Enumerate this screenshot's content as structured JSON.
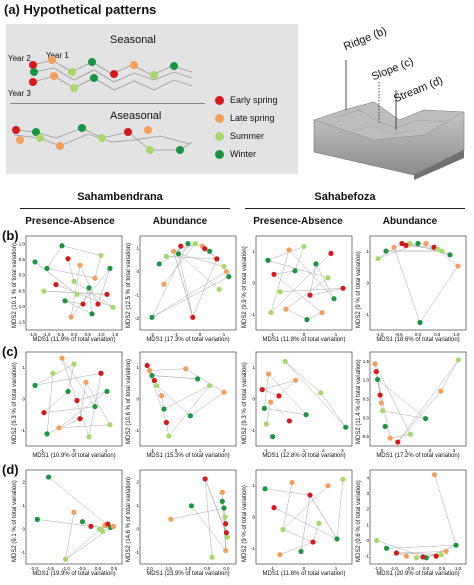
{
  "figure": {
    "panel_a_label": "(a) Hypothetical patterns",
    "panel_b_label": "(b)",
    "panel_c_label": "(c)",
    "panel_d_label": "(d)",
    "seasonal_label": "Seasonal",
    "aseasonal_label": "Aseasonal",
    "year1": "Year 1",
    "year2": "Year 2",
    "year3": "Year 3",
    "ridge": "Ridge (b)",
    "slope": "Slope (c)",
    "stream": "Stream (d)",
    "site1": "Sahambendrana",
    "site2": "Sahabefoza",
    "col_pa": "Presence-Absence",
    "col_ab": "Abundance",
    "mds2_prefix": "MDS2",
    "mds1_prefix": "MDS1"
  },
  "legend": [
    {
      "label": "Early spring",
      "color": "#d7191c"
    },
    {
      "label": "Late spring",
      "color": "#f4a05a"
    },
    {
      "label": "Summer",
      "color": "#a6d96a"
    },
    {
      "label": "Winter",
      "color": "#1a9641"
    }
  ],
  "chart_data": [
    {
      "type": "scatter",
      "panel": "b",
      "site": "Sahambendrana",
      "method": "Presence-Absence",
      "xlabel": "MDS1 (11.9% of total variation)",
      "ylabel": "MDS2 (10.1 % of total variation)",
      "xticks": [
        "-1.5",
        "-1.0",
        "-0.5",
        "0.0",
        "0.5",
        "1.0",
        "1.5"
      ],
      "yticks": [
        "-1.5",
        "-1.0",
        "-0.5",
        "0.0",
        "0.5",
        "1.0"
      ],
      "xlim": [
        -1.6,
        1.6
      ],
      "ylim": [
        -1.7,
        1.2
      ],
      "points": [
        [
          -1.3,
          0.4,
          3
        ],
        [
          -0.9,
          0.2,
          3
        ],
        [
          -0.6,
          -0.3,
          0
        ],
        [
          -0.3,
          -0.8,
          3
        ],
        [
          -0.1,
          -1.3,
          1
        ],
        [
          0.1,
          -0.6,
          2
        ],
        [
          0.3,
          -0.9,
          0
        ],
        [
          0.5,
          -0.4,
          3
        ],
        [
          0.7,
          -0.1,
          1
        ],
        [
          0.9,
          0.6,
          2
        ],
        [
          1.1,
          -0.6,
          0
        ],
        [
          1.3,
          -1.0,
          2
        ],
        [
          -0.4,
          0.9,
          3
        ],
        [
          0.2,
          0.3,
          1
        ],
        [
          0.6,
          -1.2,
          3
        ],
        [
          -1.0,
          -0.5,
          2
        ],
        [
          0.8,
          -0.9,
          0
        ],
        [
          1.2,
          0.2,
          3
        ],
        [
          0.0,
          -0.2,
          2
        ],
        [
          -0.2,
          0.5,
          0
        ]
      ]
    },
    {
      "type": "scatter",
      "panel": "b",
      "site": "Sahambendrana",
      "method": "Abundance",
      "xlabel": "MDS1 (17.3% of total variation)",
      "ylabel": "MDS2 (12.5 % of total variation)",
      "xticks": [
        "-2",
        "-1",
        "0",
        "1"
      ],
      "yticks": [
        "-2",
        "-1",
        "0",
        "1"
      ],
      "xlim": [
        -2.4,
        1.6
      ],
      "ylim": [
        -2.4,
        1.3
      ],
      "points": [
        [
          -1.6,
          0.2,
          3
        ],
        [
          -1.3,
          0.5,
          2
        ],
        [
          -1.0,
          0.7,
          1
        ],
        [
          -0.7,
          0.9,
          0
        ],
        [
          -0.4,
          1.0,
          3
        ],
        [
          -0.1,
          1.0,
          2
        ],
        [
          0.2,
          0.9,
          1
        ],
        [
          0.5,
          0.7,
          3
        ],
        [
          0.8,
          0.4,
          0
        ],
        [
          1.1,
          0.1,
          2
        ],
        [
          1.3,
          -0.3,
          3
        ],
        [
          -0.2,
          -1.9,
          0
        ],
        [
          -1.4,
          -0.6,
          1
        ],
        [
          0.3,
          0.8,
          0
        ],
        [
          -0.8,
          0.6,
          3
        ],
        [
          0.9,
          -0.8,
          2
        ],
        [
          1.2,
          -0.1,
          1
        ],
        [
          -1.9,
          -1.9,
          3
        ]
      ]
    },
    {
      "type": "scatter",
      "panel": "b",
      "site": "Sahabefoza",
      "method": "Presence-Absence",
      "xlabel": "MDS1 (11.8% of total variation)",
      "ylabel": "MDS2 (9.9 % of total variation)",
      "xticks": [
        "-1",
        "0",
        "1"
      ],
      "yticks": [
        "-1",
        "0",
        "1"
      ],
      "xlim": [
        -1.6,
        1.6
      ],
      "ylim": [
        -1.4,
        1.3
      ],
      "points": [
        [
          -1.2,
          0.6,
          3
        ],
        [
          -1.0,
          0.2,
          0
        ],
        [
          -0.8,
          -0.3,
          2
        ],
        [
          -0.5,
          0.9,
          1
        ],
        [
          -0.3,
          0.3,
          3
        ],
        [
          0.0,
          1.0,
          2
        ],
        [
          0.2,
          -0.4,
          0
        ],
        [
          0.4,
          0.5,
          3
        ],
        [
          0.6,
          -0.9,
          1
        ],
        [
          0.8,
          0.1,
          2
        ],
        [
          1.0,
          -0.5,
          3
        ],
        [
          1.3,
          -0.2,
          0
        ],
        [
          -0.6,
          -0.8,
          1
        ],
        [
          0.1,
          -1.1,
          3
        ],
        [
          -1.1,
          -0.9,
          2
        ],
        [
          0.9,
          0.8,
          0
        ]
      ]
    },
    {
      "type": "scatter",
      "panel": "b",
      "site": "Sahabefoza",
      "method": "Abundance",
      "xlabel": "MDS1 (18.6% of total variation)",
      "ylabel": "MDS2 (9 % of total variation)",
      "xticks": [
        "-1.0",
        "-0.5",
        "0.0",
        "0.5",
        "1.0"
      ],
      "yticks": [
        "-1",
        "0",
        "1"
      ],
      "xlim": [
        -1.2,
        1.2
      ],
      "ylim": [
        -1.6,
        0.9
      ],
      "points": [
        [
          -1.0,
          0.3,
          2
        ],
        [
          -0.8,
          0.5,
          3
        ],
        [
          -0.6,
          0.6,
          1
        ],
        [
          -0.4,
          0.7,
          0
        ],
        [
          -0.2,
          0.7,
          2
        ],
        [
          0.0,
          0.7,
          3
        ],
        [
          0.2,
          0.7,
          1
        ],
        [
          0.4,
          0.6,
          0
        ],
        [
          0.6,
          0.5,
          2
        ],
        [
          0.8,
          0.4,
          3
        ],
        [
          1.0,
          0.1,
          1
        ],
        [
          0.05,
          -1.4,
          3
        ],
        [
          -0.3,
          0.65,
          0
        ],
        [
          0.5,
          0.55,
          2
        ]
      ]
    },
    {
      "type": "scatter",
      "panel": "c",
      "site": "Sahambendrana",
      "method": "Presence-Absence",
      "xlabel": "MDS1 (10.9% of total variation)",
      "ylabel": "MDS2 (9.3 % of total variation)",
      "xticks": [
        "-1",
        "0",
        "1"
      ],
      "yticks": [
        "-1",
        "0",
        "1"
      ],
      "xlim": [
        -1.6,
        1.6
      ],
      "ylim": [
        -1.5,
        1.6
      ],
      "points": [
        [
          -1.3,
          0.5,
          3
        ],
        [
          -1.0,
          -0.4,
          0
        ],
        [
          -0.7,
          0.9,
          2
        ],
        [
          -0.5,
          -0.9,
          1
        ],
        [
          -0.2,
          0.3,
          3
        ],
        [
          0.0,
          1.2,
          2
        ],
        [
          0.2,
          -0.6,
          0
        ],
        [
          0.4,
          0.6,
          1
        ],
        [
          0.7,
          -0.2,
          3
        ],
        [
          0.9,
          0.9,
          0
        ],
        [
          1.2,
          -0.8,
          2
        ],
        [
          -0.9,
          -1.1,
          3
        ],
        [
          0.5,
          -1.2,
          2
        ],
        [
          -0.4,
          1.4,
          1
        ],
        [
          1.1,
          0.3,
          3
        ],
        [
          0.1,
          0.0,
          0
        ]
      ]
    },
    {
      "type": "scatter",
      "panel": "c",
      "site": "Sahambendrana",
      "method": "Abundance",
      "xlabel": "MDS1 (15.3% of total variation)",
      "ylabel": "MDS2 (10.6 % of total variation)",
      "xticks": [
        "-1",
        "0",
        "1",
        "2"
      ],
      "yticks": [
        "-1",
        "0",
        "1"
      ],
      "xlim": [
        -1.6,
        2.4
      ],
      "ylim": [
        -1.4,
        1.4
      ],
      "points": [
        [
          -1.3,
          1.0,
          0
        ],
        [
          -1.1,
          0.7,
          3
        ],
        [
          -0.9,
          0.4,
          2
        ],
        [
          -0.7,
          0.1,
          1
        ],
        [
          -0.6,
          -0.3,
          3
        ],
        [
          -0.5,
          -0.7,
          0
        ],
        [
          -0.4,
          -1.1,
          2
        ],
        [
          0.3,
          0.9,
          1
        ],
        [
          0.8,
          0.6,
          3
        ],
        [
          1.3,
          0.4,
          2
        ],
        [
          1.9,
          0.2,
          1
        ],
        [
          0.5,
          -0.5,
          3
        ],
        [
          -1.2,
          0.85,
          1
        ],
        [
          -1.0,
          0.55,
          0
        ]
      ]
    },
    {
      "type": "scatter",
      "panel": "c",
      "site": "Sahabefoza",
      "method": "Presence-Absence",
      "xlabel": "MDS1 (12.8% of total variation)",
      "ylabel": "MDS2 (9.3 % of total variation)",
      "xticks": [
        "-1",
        "0",
        "1",
        "2",
        "3"
      ],
      "yticks": [
        "-1",
        "0",
        "1"
      ],
      "xlim": [
        -1.4,
        3.2
      ],
      "ylim": [
        -1.4,
        1.6
      ],
      "points": [
        [
          -1.1,
          0.4,
          0
        ],
        [
          -1.0,
          -0.2,
          3
        ],
        [
          -0.9,
          -0.7,
          2
        ],
        [
          -0.8,
          0.9,
          1
        ],
        [
          -0.6,
          -1.1,
          3
        ],
        [
          -0.3,
          0.2,
          0
        ],
        [
          0.0,
          1.3,
          2
        ],
        [
          0.5,
          0.7,
          1
        ],
        [
          1.0,
          -0.4,
          3
        ],
        [
          1.7,
          0.3,
          2
        ],
        [
          2.9,
          -0.8,
          3
        ],
        [
          -0.7,
          0.0,
          1
        ],
        [
          0.2,
          -0.6,
          0
        ]
      ]
    },
    {
      "type": "scatter",
      "panel": "c",
      "site": "Sahabefoza",
      "method": "Abundance",
      "xlabel": "MDS1 (17.2% of total variation)",
      "ylabel": "MDS2 (11.4 % of total variation)",
      "xticks": [
        "0",
        "1",
        "2",
        "3"
      ],
      "yticks": [
        "-0.5",
        "0.0",
        "0.5",
        "1.0",
        "1.5"
      ],
      "xlim": [
        -0.6,
        3.2
      ],
      "ylim": [
        -0.8,
        1.6
      ],
      "points": [
        [
          -0.4,
          1.3,
          1
        ],
        [
          -0.3,
          0.9,
          3
        ],
        [
          -0.2,
          0.5,
          0
        ],
        [
          -0.1,
          0.1,
          2
        ],
        [
          0.0,
          -0.3,
          3
        ],
        [
          0.2,
          -0.6,
          1
        ],
        [
          0.5,
          -0.7,
          0
        ],
        [
          1.0,
          -0.5,
          2
        ],
        [
          1.6,
          -0.1,
          3
        ],
        [
          2.2,
          0.6,
          1
        ],
        [
          2.9,
          1.4,
          2
        ],
        [
          -0.35,
          1.1,
          0
        ],
        [
          -0.15,
          0.3,
          1
        ]
      ]
    },
    {
      "type": "scatter",
      "panel": "d",
      "site": "Sahambendrana",
      "method": "Presence-Absence",
      "xlabel": "MDS1 (19.9% of total variation)",
      "ylabel": "MDS2 (9.1 % of total variation)",
      "xticks": [
        "-2.0",
        "-1.5",
        "-1.0",
        "-0.5",
        "0.0",
        "0.5"
      ],
      "yticks": [
        "-1",
        "0",
        "1",
        "2"
      ],
      "xlim": [
        -2.6,
        0.8
      ],
      "ylim": [
        -1.6,
        2.4
      ],
      "points": [
        [
          -2.2,
          0.3,
          3
        ],
        [
          -1.8,
          2.1,
          3
        ],
        [
          -1.2,
          -1.4,
          2
        ],
        [
          -0.9,
          0.6,
          1
        ],
        [
          -0.6,
          0.2,
          3
        ],
        [
          -0.3,
          0.0,
          0
        ],
        [
          0.0,
          -0.1,
          2
        ],
        [
          0.2,
          0.05,
          1
        ],
        [
          0.4,
          -0.05,
          3
        ],
        [
          0.3,
          0.1,
          0
        ],
        [
          0.1,
          -0.2,
          2
        ],
        [
          0.5,
          0.0,
          1
        ]
      ]
    },
    {
      "type": "scatter",
      "panel": "d",
      "site": "Sahambendrana",
      "method": "Abundance",
      "xlabel": "MDS1 (23.9% of total variation)",
      "ylabel": "MDS2 (14.6 % of total variation)",
      "xticks": [
        "2.0",
        "1.5",
        "1.0",
        "0.5",
        "0.0"
      ],
      "yticks": [
        "-1",
        "0",
        "1",
        "2"
      ],
      "xlim": [
        -2.4,
        0.4
      ],
      "ylim": [
        -1.6,
        2.6
      ],
      "points": [
        [
          -1.5,
          0.4,
          1
        ],
        [
          -0.9,
          1.0,
          3
        ],
        [
          -0.5,
          2.2,
          0
        ],
        [
          -0.3,
          -1.3,
          2
        ],
        [
          0.0,
          1.6,
          1
        ],
        [
          0.05,
          0.9,
          3
        ],
        [
          0.1,
          0.2,
          0
        ],
        [
          0.15,
          -0.4,
          2
        ],
        [
          0.1,
          -1.0,
          1
        ],
        [
          0.0,
          1.2,
          3
        ],
        [
          0.08,
          0.5,
          2
        ],
        [
          0.12,
          -0.2,
          0
        ]
      ]
    },
    {
      "type": "scatter",
      "panel": "d",
      "site": "Sahabefoza",
      "method": "Presence-Absence",
      "xlabel": "MDS1 (11.8% of total variation)",
      "ylabel": "MDS2 (9 % of total variation)",
      "xticks": [
        "-1",
        "0",
        "1"
      ],
      "yticks": [
        "-1",
        "0",
        "1"
      ],
      "xlim": [
        -1.6,
        1.6
      ],
      "ylim": [
        -1.6,
        1.4
      ],
      "points": [
        [
          -1.3,
          0.8,
          3
        ],
        [
          -1.0,
          0.2,
          0
        ],
        [
          -0.7,
          -0.5,
          2
        ],
        [
          -0.4,
          1.0,
          1
        ],
        [
          -0.1,
          -1.2,
          3
        ],
        [
          0.2,
          0.6,
          0
        ],
        [
          0.5,
          -0.3,
          2
        ],
        [
          0.8,
          0.9,
          1
        ],
        [
          1.1,
          -0.8,
          3
        ],
        [
          1.3,
          1.1,
          2
        ],
        [
          -0.8,
          -1.3,
          1
        ],
        [
          0.3,
          -0.9,
          0
        ]
      ]
    },
    {
      "type": "scatter",
      "panel": "d",
      "site": "Sahabefoza",
      "method": "Abundance",
      "xlabel": "MDS1 (20.9% of total variation)",
      "ylabel": "MDS2 (9.6 % of total variation)",
      "xticks": [
        "-1.5",
        "-1.0",
        "-0.5",
        "0.0",
        "0.5",
        "1.0"
      ],
      "yticks": [
        "-1",
        "0",
        "1",
        "2",
        "3",
        "4"
      ],
      "xlim": [
        -1.7,
        1.2
      ],
      "ylim": [
        -1.4,
        4.6
      ],
      "points": [
        [
          -1.5,
          0.1,
          2
        ],
        [
          -1.2,
          -0.4,
          3
        ],
        [
          -0.9,
          -0.7,
          0
        ],
        [
          -0.6,
          -0.9,
          1
        ],
        [
          -0.3,
          -1.0,
          2
        ],
        [
          0.0,
          -1.0,
          3
        ],
        [
          0.3,
          -0.9,
          0
        ],
        [
          0.6,
          -0.6,
          1
        ],
        [
          0.9,
          -0.2,
          3
        ],
        [
          0.25,
          4.3,
          1
        ],
        [
          -0.1,
          -0.95,
          0
        ],
        [
          0.45,
          -0.8,
          2
        ]
      ]
    }
  ]
}
